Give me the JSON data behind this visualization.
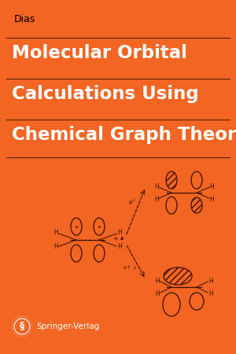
{
  "bg_color": "#F26522",
  "author": "Dias",
  "title_lines": [
    "Molecular Orbital",
    "Calculations Using",
    "Chemical Graph Theory"
  ],
  "publisher": "Springer-Verlag",
  "author_color": "#000000",
  "title_color": "#FFFFFF",
  "publisher_color": "#FFFFFF",
  "line_color": "#4a1a00",
  "drawing_color": "#3a1000",
  "title_fontsize": 16.5,
  "author_fontsize": 9,
  "publisher_fontsize": 7.5,
  "fig_width": 3.0,
  "fig_height": 4.5,
  "dpi": 100
}
